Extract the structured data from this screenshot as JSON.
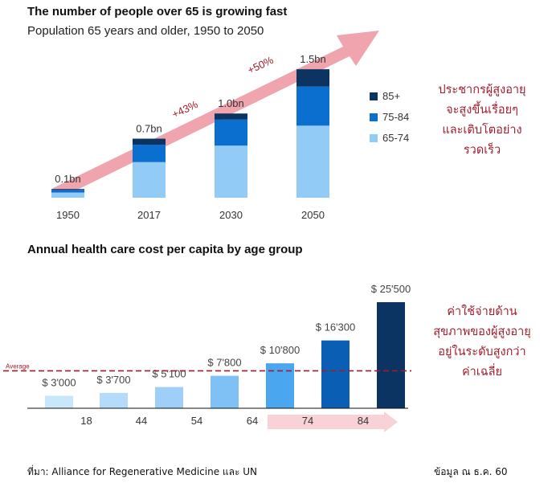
{
  "chart_data": [
    {
      "type": "bar",
      "stacked": true,
      "title": "The number of people over 65 is growing fast",
      "subtitle": "Population 65 years and older, 1950 to 2050",
      "categories": [
        "1950",
        "2017",
        "2030",
        "2050"
      ],
      "totals_label": [
        "0.1bn",
        "0.7bn",
        "1.0bn",
        "1.5bn"
      ],
      "ylim": [
        0,
        1.6
      ],
      "series": [
        {
          "name": "65-74",
          "color": "#92cbf6",
          "values": [
            0.06,
            0.41,
            0.6,
            0.83
          ]
        },
        {
          "name": "75-84",
          "color": "#0a6fcf",
          "values": [
            0.03,
            0.2,
            0.3,
            0.45
          ]
        },
        {
          "name": "85+",
          "color": "#0b3463",
          "values": [
            0.01,
            0.07,
            0.07,
            0.2
          ]
        }
      ],
      "legend_order": [
        "85+",
        "75-84",
        "65-74"
      ],
      "annotations": [
        "+43%",
        "+50%"
      ],
      "arrow_color": "#efa4ae"
    },
    {
      "type": "bar",
      "title": "Annual health care cost per capita by age group",
      "categories": [
        "0-18",
        "18-44",
        "44-54",
        "54-64",
        "64-74",
        "74-84",
        "84+"
      ],
      "x_tick_labels": [
        "18",
        "44",
        "54",
        "64",
        "74",
        "84"
      ],
      "values": [
        3000,
        3700,
        5100,
        7800,
        10800,
        16300,
        25500
      ],
      "value_labels": [
        "$ 3'000",
        "$ 3'700",
        "$ 5'100",
        "$ 7'800",
        "$ 10'800",
        "$ 16'300",
        "$ 25'500"
      ],
      "colors": [
        "#c9e6fb",
        "#b4dbf9",
        "#9ecff8",
        "#7fc0f5",
        "#4aa6ef",
        "#0a5fb5",
        "#0b3463"
      ],
      "average": 9000,
      "average_label": "Average",
      "average_color": "#a01c2c",
      "ylim": [
        0,
        27000
      ]
    }
  ],
  "notes": {
    "population": [
      "ประชากรผู้สูงอายุ",
      "จะสูงขึ้นเรื่อยๆ",
      "และเติบโตอย่าง",
      "รวดเร็ว"
    ],
    "cost": [
      "ค่าใช้จ่ายด้าน",
      "สุขภาพของผู้สูงอายุ",
      "อยู่ในระดับสูงกว่า",
      "ค่าเฉลี่ย"
    ]
  },
  "footer": {
    "source": "ที่มา: Alliance for Regenerative Medicine และ UN",
    "date": "ข้อมูล ณ ธ.ค. 60"
  }
}
